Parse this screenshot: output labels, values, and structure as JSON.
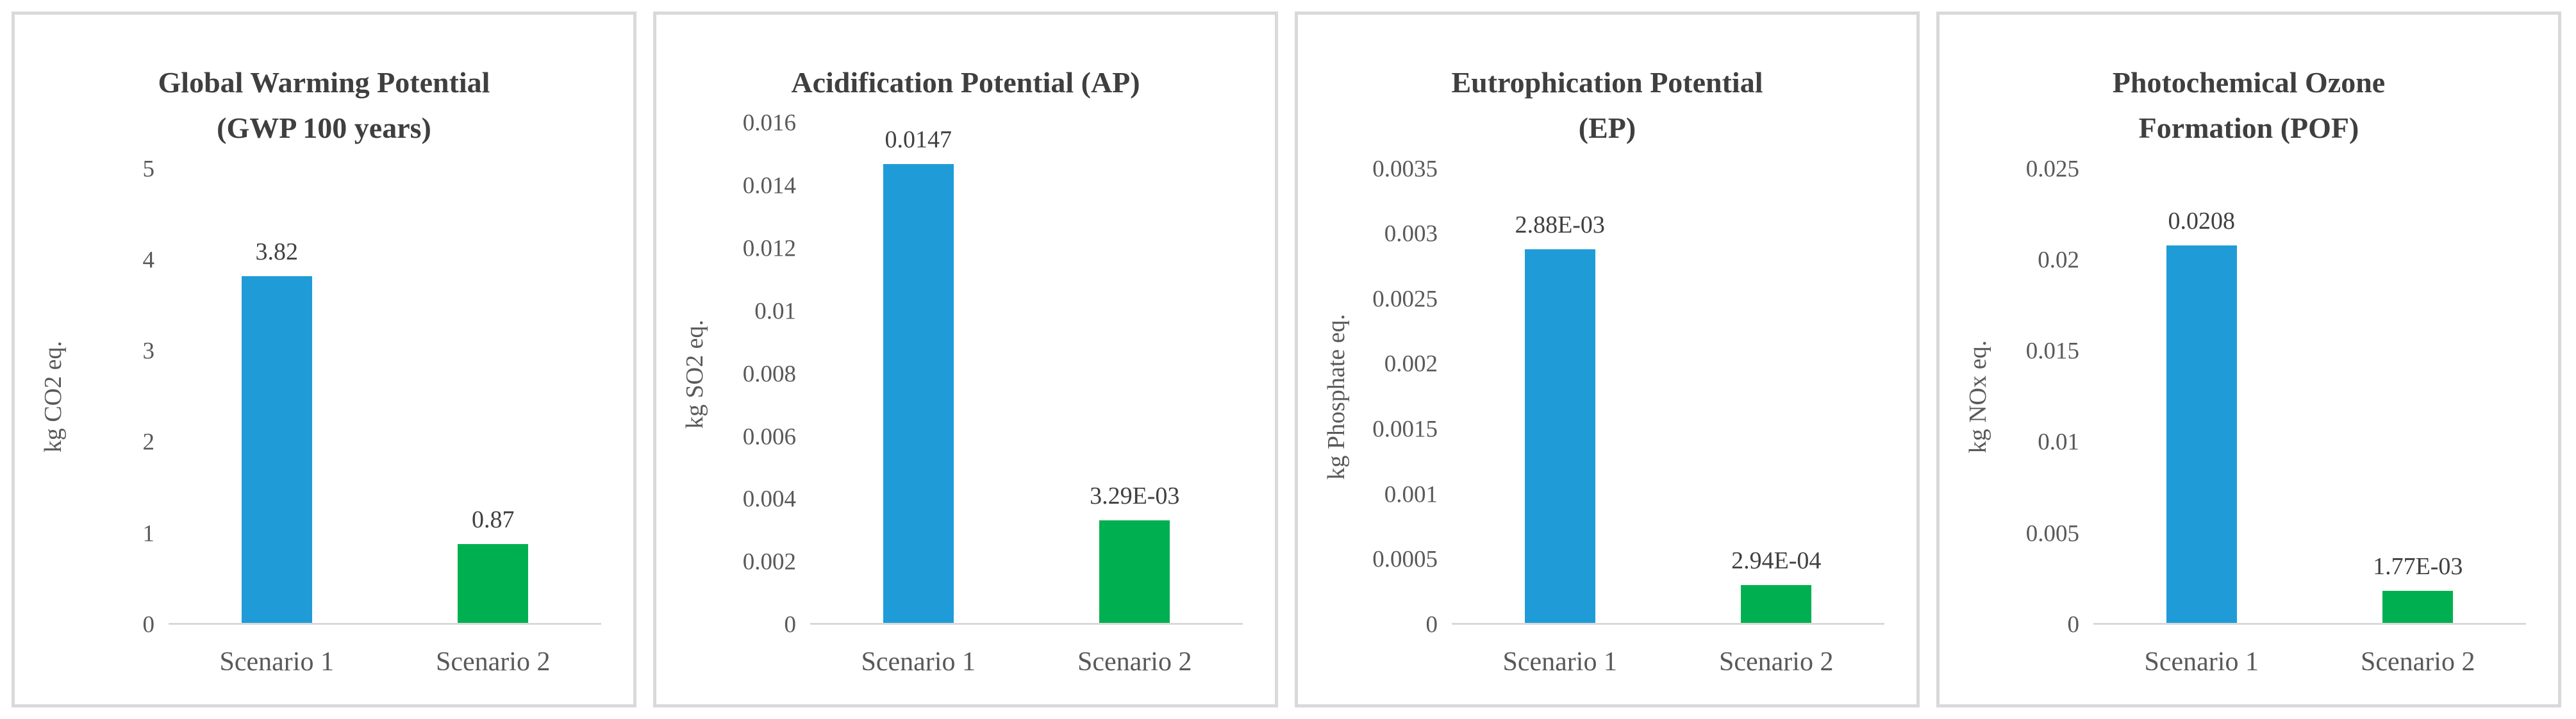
{
  "page": {
    "background": "#FFFFFF"
  },
  "colors": {
    "scenario1_bar": "#1F9CD8",
    "scenario2_bar": "#00B050",
    "title_text": "#3F3F3F",
    "axis_text": "#595959",
    "data_label_text": "#404040",
    "panel_border": "#D9D9D9",
    "axis_line": "#D9D9D9"
  },
  "chart_data": [
    {
      "type": "bar",
      "title": "Global Warming Potential (GWP 100 years)",
      "title_lines": [
        "Global Warming Potential",
        "(GWP 100 years)"
      ],
      "xlabel": "",
      "ylabel": "kg CO2 eq.",
      "categories": [
        "Scenario 1",
        "Scenario 2"
      ],
      "values": [
        3.82,
        0.87
      ],
      "value_labels": [
        "3.82",
        "0.87"
      ],
      "bar_colors": [
        "#1F9CD8",
        "#00B050"
      ],
      "ylim": [
        0,
        5
      ],
      "yticks": [
        5,
        4,
        3,
        2,
        1,
        0
      ],
      "ytick_labels": [
        "5",
        "4",
        "3",
        "2",
        "1",
        "0"
      ],
      "grid": false,
      "legend": null
    },
    {
      "type": "bar",
      "title": "Acidification Potential (AP)",
      "title_lines": [
        "Acidification Potential (AP)"
      ],
      "xlabel": "",
      "ylabel": "kg SO2 eq.",
      "categories": [
        "Scenario 1",
        "Scenario 2"
      ],
      "values": [
        0.0147,
        0.00329
      ],
      "value_labels": [
        "0.0147",
        "3.29E-03"
      ],
      "bar_colors": [
        "#1F9CD8",
        "#00B050"
      ],
      "ylim": [
        0,
        0.016
      ],
      "yticks": [
        0.016,
        0.014,
        0.012,
        0.01,
        0.008,
        0.006,
        0.004,
        0.002,
        0
      ],
      "ytick_labels": [
        "0.016",
        "0.014",
        "0.012",
        "0.01",
        "0.008",
        "0.006",
        "0.004",
        "0.002",
        "0"
      ],
      "grid": false,
      "legend": null
    },
    {
      "type": "bar",
      "title": "Eutrophication Potential (EP)",
      "title_lines": [
        "Eutrophication Potential",
        "(EP)"
      ],
      "xlabel": "",
      "ylabel": "kg Phosphate eq.",
      "categories": [
        "Scenario 1",
        "Scenario 2"
      ],
      "values": [
        0.00288,
        0.000294
      ],
      "value_labels": [
        "2.88E-03",
        "2.94E-04"
      ],
      "bar_colors": [
        "#1F9CD8",
        "#00B050"
      ],
      "ylim": [
        0,
        0.0035
      ],
      "yticks": [
        0.0035,
        0.003,
        0.0025,
        0.002,
        0.0015,
        0.001,
        0.0005,
        0
      ],
      "ytick_labels": [
        "0.0035",
        "0.003",
        "0.0025",
        "0.002",
        "0.0015",
        "0.001",
        "0.0005",
        "0"
      ],
      "grid": false,
      "legend": null
    },
    {
      "type": "bar",
      "title": "Photochemical Ozone Formation (POF)",
      "title_lines": [
        "Photochemical Ozone",
        "Formation (POF)"
      ],
      "xlabel": "",
      "ylabel": "kg NOx eq.",
      "categories": [
        "Scenario 1",
        "Scenario 2"
      ],
      "values": [
        0.0208,
        0.00177
      ],
      "value_labels": [
        "0.0208",
        "1.77E-03"
      ],
      "bar_colors": [
        "#1F9CD8",
        "#00B050"
      ],
      "ylim": [
        0,
        0.025
      ],
      "yticks": [
        0.025,
        0.02,
        0.015,
        0.01,
        0.005,
        0
      ],
      "ytick_labels": [
        "0.025",
        "0.02",
        "0.015",
        "0.01",
        "0.005",
        "0"
      ],
      "grid": false,
      "legend": null
    }
  ]
}
